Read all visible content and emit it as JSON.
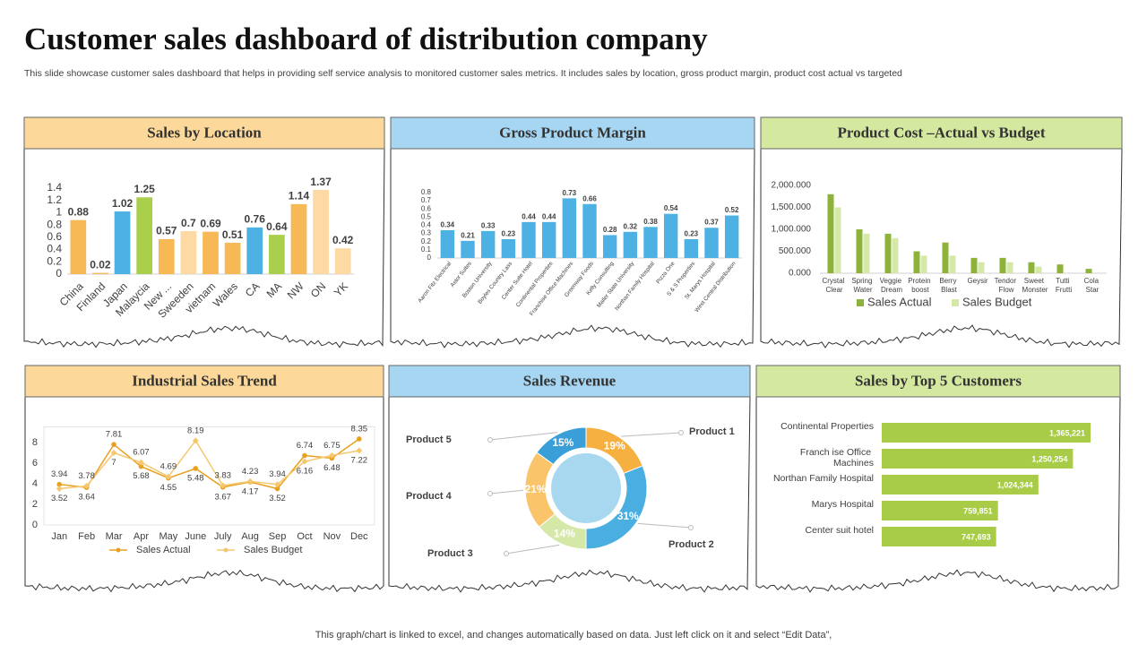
{
  "page": {
    "title": "Customer sales dashboard of distribution company",
    "subtitle": "This slide showcase customer sales dashboard that helps in providing self service analysis to monitored customer sales metrics. It includes sales by location, gross product margin, product cost actual vs targeted",
    "footer": "This graph/chart is linked to excel,  and changes automatically based on data. Just left click on it and select “Edit Data”,"
  },
  "chart_data": [
    {
      "type": "bar",
      "title": "Sales by  Location",
      "categories": [
        "China",
        "Finland",
        "Japan",
        "Malaycia",
        "New ...",
        "Sweeden",
        "vietnam",
        "Wales",
        "CA",
        "MA",
        "NW",
        "ON",
        "YK"
      ],
      "values": [
        0.88,
        0.02,
        1.02,
        1.25,
        0.57,
        0.7,
        0.69,
        0.51,
        0.76,
        0.64,
        1.14,
        1.37,
        0.42
      ],
      "colors": [
        "#f7b955",
        "#f7b955",
        "#4db1e3",
        "#a9cf4c",
        "#f7b955",
        "#fdd9a3",
        "#f7b955",
        "#f7b955",
        "#4db1e3",
        "#a9cf4c",
        "#f7b955",
        "#fdd9a3",
        "#fdd9a3"
      ],
      "ylim": [
        0,
        1.4
      ],
      "yticks": [
        0,
        0.2,
        0.4,
        0.6,
        0.8,
        1,
        1.2,
        1.4
      ],
      "data_labels": true,
      "grid": false
    },
    {
      "type": "bar",
      "title": "Gross Product Margin",
      "categories": [
        "Aaron Fitz Electrical",
        "Astor Suites",
        "Boston University",
        "Boyles Country Lass",
        "Center Suite Hotel",
        "Continental Properties",
        "Franchise Office Machines",
        "Greenway Foods",
        "Kelly Consulting",
        "Mailer State University",
        "Northan Family Hospital",
        "Pizza One",
        "S & S Properties",
        "St. Marys Hospital",
        "West Central Distribution"
      ],
      "values": [
        0.34,
        0.21,
        0.33,
        0.23,
        0.44,
        0.44,
        0.73,
        0.66,
        0.28,
        0.32,
        0.38,
        0.54,
        0.23,
        0.37,
        0.52
      ],
      "color": "#4db1e3",
      "ylim": [
        0,
        0.8
      ],
      "yticks": [
        0,
        0.1,
        0.2,
        0.3,
        0.4,
        0.5,
        0.6,
        0.7,
        0.8
      ],
      "data_labels": true,
      "grid": false
    },
    {
      "type": "bar",
      "title": "Product Cost –Actual vs Budget",
      "categories": [
        "Crystal Clear",
        "Spring Water",
        "Veggie Dream",
        "Protein boost",
        "Berry Blast",
        "Geysir",
        "Tendor Flow",
        "Sweet Monster",
        "Tutti Frutti",
        "Cola Star"
      ],
      "series": [
        {
          "name": "Sales  Actual",
          "color": "#8db33a",
          "values": [
            1800000,
            1000000,
            900000,
            500000,
            700000,
            350000,
            350000,
            250000,
            200000,
            100000
          ]
        },
        {
          "name": "Sales  Budget",
          "color": "#d5e8a8",
          "values": [
            1500000,
            900000,
            800000,
            400000,
            400000,
            250000,
            250000,
            150000,
            null,
            null
          ]
        }
      ],
      "ylim": [
        0,
        2000000
      ],
      "yticks": [
        {
          "value": 0,
          "label": "0.000"
        },
        {
          "value": 500000,
          "label": "500.000"
        },
        {
          "value": 1000000,
          "label": "1,000.000"
        },
        {
          "value": 1500000,
          "label": "1,500.000"
        },
        {
          "value": 2000000,
          "label": "2,000.000"
        }
      ],
      "data_labels": false,
      "grid": false,
      "legend": "bottom"
    },
    {
      "type": "line",
      "title": "Industrial Sales Trend",
      "categories": [
        "Jan",
        "Feb",
        "Mar",
        "Apr",
        "May",
        "June",
        "July",
        "Aug",
        "Sep",
        "Oct",
        "Nov",
        "Dec"
      ],
      "series": [
        {
          "name": "Sales  Actual",
          "color": "#e8a020",
          "marker": "circle",
          "values": [
            3.94,
            3.64,
            7.81,
            5.68,
            4.55,
            5.48,
            3.67,
            4.17,
            3.52,
            6.74,
            6.48,
            8.35
          ]
        },
        {
          "name": "Sales Budget",
          "color": "#f5c870",
          "marker": "diamond",
          "values": [
            3.52,
            3.78,
            7,
            6.07,
            4.69,
            8.19,
            3.83,
            4.23,
            3.94,
            6.16,
            6.75,
            7.22
          ]
        }
      ],
      "ylim": [
        0,
        9
      ],
      "yticks": [
        0,
        2,
        4,
        6,
        8
      ],
      "data_labels": true,
      "grid": false,
      "legend": "bottom"
    },
    {
      "type": "pie",
      "title": "Sales Revenue",
      "donut": true,
      "categories": [
        "Product 1",
        "Product 2",
        "Product 3",
        "Product 4",
        "Product 5"
      ],
      "values": [
        19,
        31,
        14,
        21,
        15
      ],
      "value_labels": [
        "19%",
        "31%",
        "14%",
        "21%",
        "15%"
      ],
      "colors": [
        "#f6b040",
        "#4aaee0",
        "#d5e8a8",
        "#f9c46a",
        "#3a9fd8"
      ]
    },
    {
      "type": "hbar",
      "title": "Sales by Top 5 Customers",
      "categories": [
        "Continental Properties",
        "Franch ise Office Machines",
        "Northan Family Hospital",
        "Marys Hospital",
        "Center suit hotel"
      ],
      "values": [
        1365221,
        1250254,
        1024344,
        759851,
        747693
      ],
      "value_labels": [
        "1,365,221",
        "1,250,254",
        "1,024,344",
        "759,851",
        "747,693"
      ],
      "color": "#a8cc48",
      "xlim": [
        0,
        1500000
      ]
    }
  ]
}
